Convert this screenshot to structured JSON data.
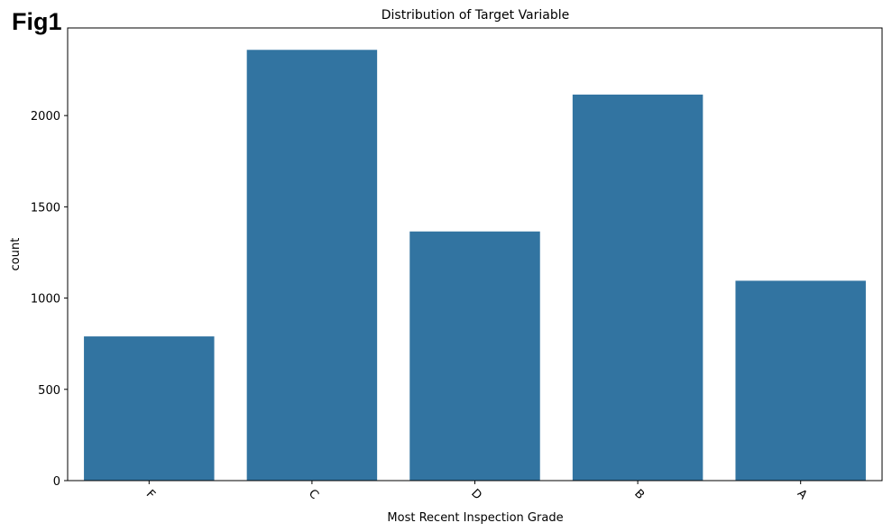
{
  "figure_label": "Fig1",
  "chart_data": {
    "type": "bar",
    "title": "Distribution of Target Variable",
    "xlabel": "Most Recent Inspection Grade",
    "ylabel": "count",
    "categories": [
      "F",
      "C",
      "D",
      "B",
      "A"
    ],
    "values": [
      790,
      2360,
      1365,
      2115,
      1095
    ],
    "ylim": [
      0,
      2480
    ],
    "yticks": [
      0,
      500,
      1000,
      1500,
      2000
    ],
    "xtick_rotation": 45,
    "bar_color": "#3274a1",
    "grid": false,
    "legend": "none"
  }
}
